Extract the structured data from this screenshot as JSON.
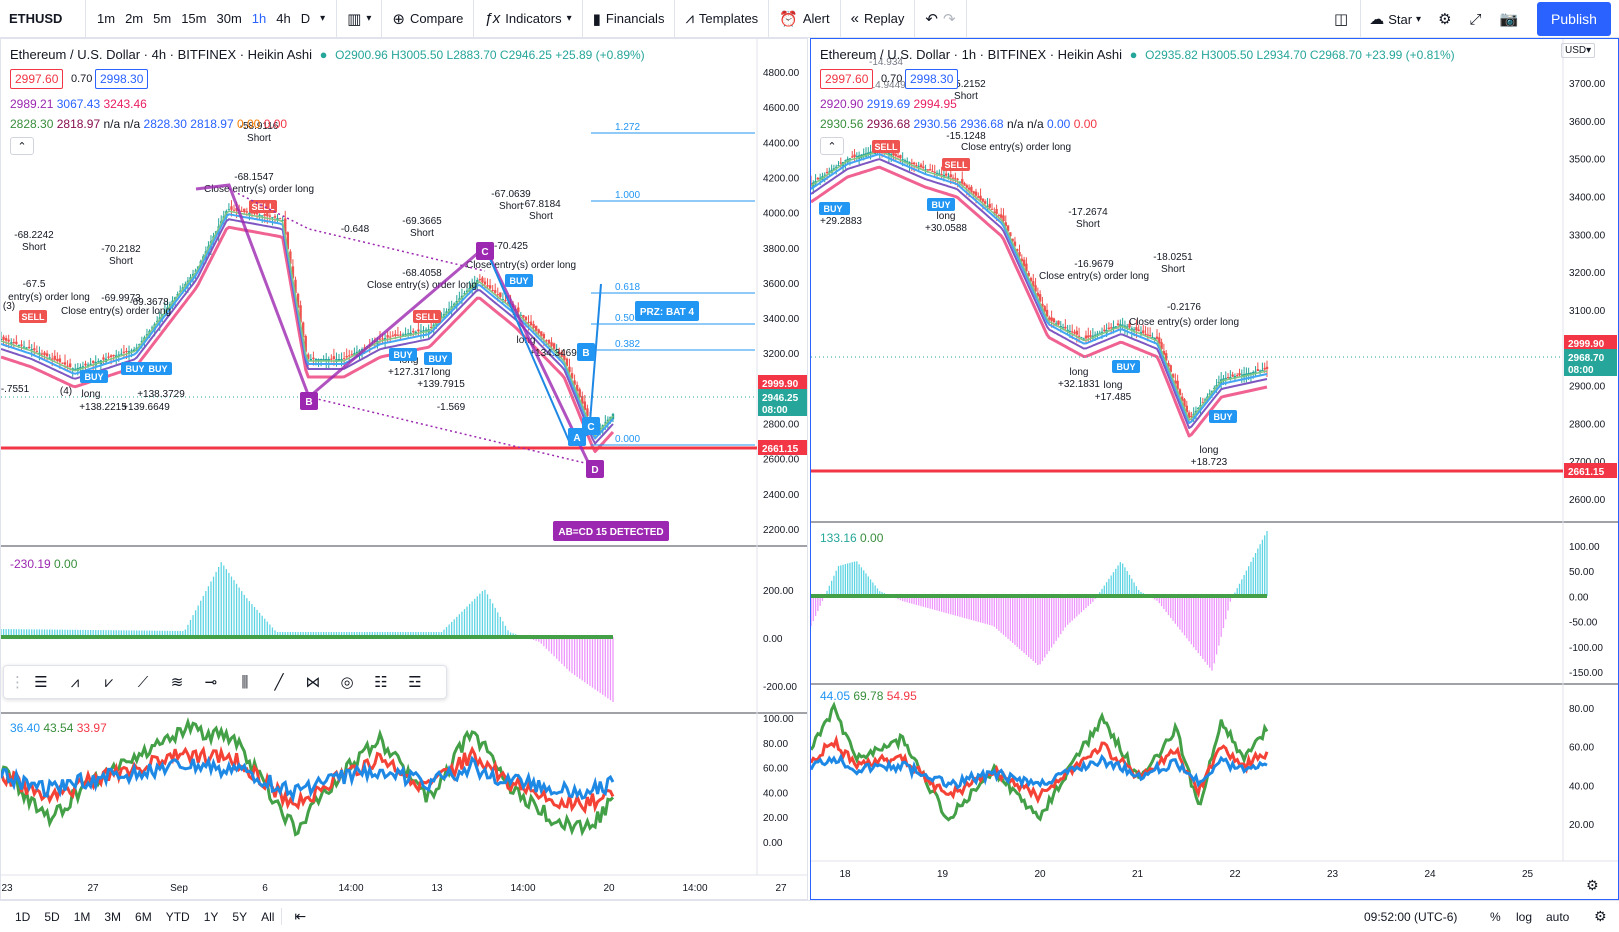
{
  "toolbar": {
    "symbol": "ETHUSD",
    "intervals": [
      "1m",
      "2m",
      "5m",
      "15m",
      "30m",
      "1h",
      "4h",
      "D"
    ],
    "active_interval": "1h",
    "compare": "Compare",
    "indicators": "Indicators",
    "financials": "Financials",
    "templates": "Templates",
    "alert": "Alert",
    "replay": "Replay",
    "star": "Star",
    "publish": "Publish"
  },
  "left": {
    "title": "Ethereum / U.S. Dollar · 4h · BITFINEX · Heikin Ashi",
    "ohlc": "O2900.96 H3005.50 L2883.70 C2946.25 +25.89 (+0.89%)",
    "bid": "2997.60",
    "spread": "0.70",
    "ask": "2998.30",
    "ind1": [
      "2989.21",
      "3067.43",
      "3243.46"
    ],
    "ind2": [
      "2828.30",
      "2818.97",
      "n/a",
      "n/a",
      "2828.30",
      "2818.97",
      "0.00",
      "0.00"
    ],
    "osc_label": [
      "-230.19",
      "0.00"
    ],
    "rsi_label": [
      "36.40",
      "43.54",
      "33.97"
    ],
    "price_ticks": [
      "4800.00",
      "4600.00",
      "4400.00",
      "4200.00",
      "4000.00",
      "3800.00",
      "3600.00",
      "3400.00",
      "3200.00",
      "3000.00",
      "2800.00",
      "2600.00",
      "2400.00",
      "2200.00"
    ],
    "osc_ticks": [
      "200.00",
      "0.00",
      "-200.00"
    ],
    "rsi_ticks": [
      "100.00",
      "80.00",
      "60.00",
      "40.00",
      "20.00",
      "0.00"
    ],
    "time_ticks": [
      "23",
      "27",
      "Sep",
      "6",
      "14:00",
      "13",
      "14:00",
      "20",
      "14:00",
      "27"
    ],
    "price_tags": [
      "2999.90",
      "2946.25",
      "08:00",
      "2661.15"
    ],
    "fib": [
      "1.272",
      "1.000",
      "0.618",
      "0.500",
      "0.382",
      "0.000"
    ],
    "prz": "PRZ: BAT 4",
    "abcd": "AB=CD 15 DETECTED",
    "pattern_points": [
      "A",
      "B",
      "C",
      "D",
      "A",
      "B",
      "C"
    ],
    "annotations": [
      "-68.2242",
      "Short",
      "-67.5",
      "entry(s) order long",
      "-70.2182",
      "Short",
      "-69.9973",
      "-69.3678",
      "Close entry(s) order long",
      "-58.9116",
      "Short",
      "-68.1547",
      "Close entry(s) order long",
      "-0.648",
      "-69.3665",
      "Short",
      "-68.4058",
      "Close entry(s) order long",
      "-67.0639",
      "Short",
      "-67.8184",
      "Short",
      "-70.425",
      "Close entry(s) order long",
      "long",
      "+134.3469",
      "long",
      "+127.317",
      "long",
      "+139.7915",
      "long",
      "+138.2215",
      "+139.6649",
      "+138.3729",
      "-1.569",
      "-.7551",
      "(3)",
      "(4)"
    ],
    "signals": [
      "SELL",
      "BUY",
      "BUY",
      "BUY",
      "SELL",
      "BUY",
      "BUY",
      "SELL",
      "BUY"
    ]
  },
  "right": {
    "title": "Ethereum / U.S. Dollar · 1h · BITFINEX · Heikin Ashi",
    "ohlc": "O2935.82 H3005.50 L2934.70 C2968.70 +23.99 (+0.81%)",
    "bid": "2997.60",
    "spread": "0.70",
    "ask": "2998.30",
    "ind1": [
      "2920.90",
      "2919.69",
      "2994.95"
    ],
    "ind2": [
      "2930.56",
      "2936.68",
      "2930.56",
      "2936.68",
      "n/a",
      "n/a",
      "0.00",
      "0.00"
    ],
    "osc_label": [
      "133.16",
      "0.00"
    ],
    "rsi_label": [
      "44.05",
      "69.78",
      "54.95"
    ],
    "currency": "USD",
    "price_ticks": [
      "3700.00",
      "3600.00",
      "3500.00",
      "3400.00",
      "3300.00",
      "3200.00",
      "3100.00",
      "3000.00",
      "2900.00",
      "2800.00",
      "2700.00",
      "2600.00"
    ],
    "osc_ticks": [
      "100.00",
      "50.00",
      "0.00",
      "-50.00",
      "-100.00",
      "-150.00"
    ],
    "rsi_ticks": [
      "80.00",
      "60.00",
      "40.00",
      "20.00"
    ],
    "time_ticks": [
      "18",
      "19",
      "20",
      "21",
      "22",
      "23",
      "24",
      "25"
    ],
    "price_tags": [
      "2999.90",
      "2968.70",
      "08:00",
      "2661.15"
    ],
    "annotations": [
      "-14.934",
      "-14.9449",
      "-15.2152",
      "Short",
      "-15.1248",
      "Close entry(s) order long",
      "-17.2674",
      "Short",
      "-16.9679",
      "Close entry(s) order long",
      "-18.0251",
      "Short",
      "-0.2176",
      "Close entry(s) order long",
      "long",
      "+29.2883",
      "long",
      "+30.0588",
      "long",
      "+32.1831",
      "long",
      "+17.485",
      "long",
      "+18.723"
    ],
    "signals": [
      "SELL",
      "SELL",
      "BUY",
      "BUY",
      "BUY",
      "BUY",
      "BUY"
    ]
  },
  "bottom": {
    "ranges": [
      "1D",
      "5D",
      "1M",
      "3M",
      "6M",
      "YTD",
      "1Y",
      "5Y",
      "All"
    ],
    "time": "09:52:00 (UTC-6)",
    "percent": "%",
    "log": "log",
    "auto": "auto"
  },
  "colors": {
    "accent": "#2962ff",
    "red_line": "#f23645",
    "teal": "#26a69a",
    "purple": "#9c27b0",
    "blue_fib": "#2196f3"
  }
}
